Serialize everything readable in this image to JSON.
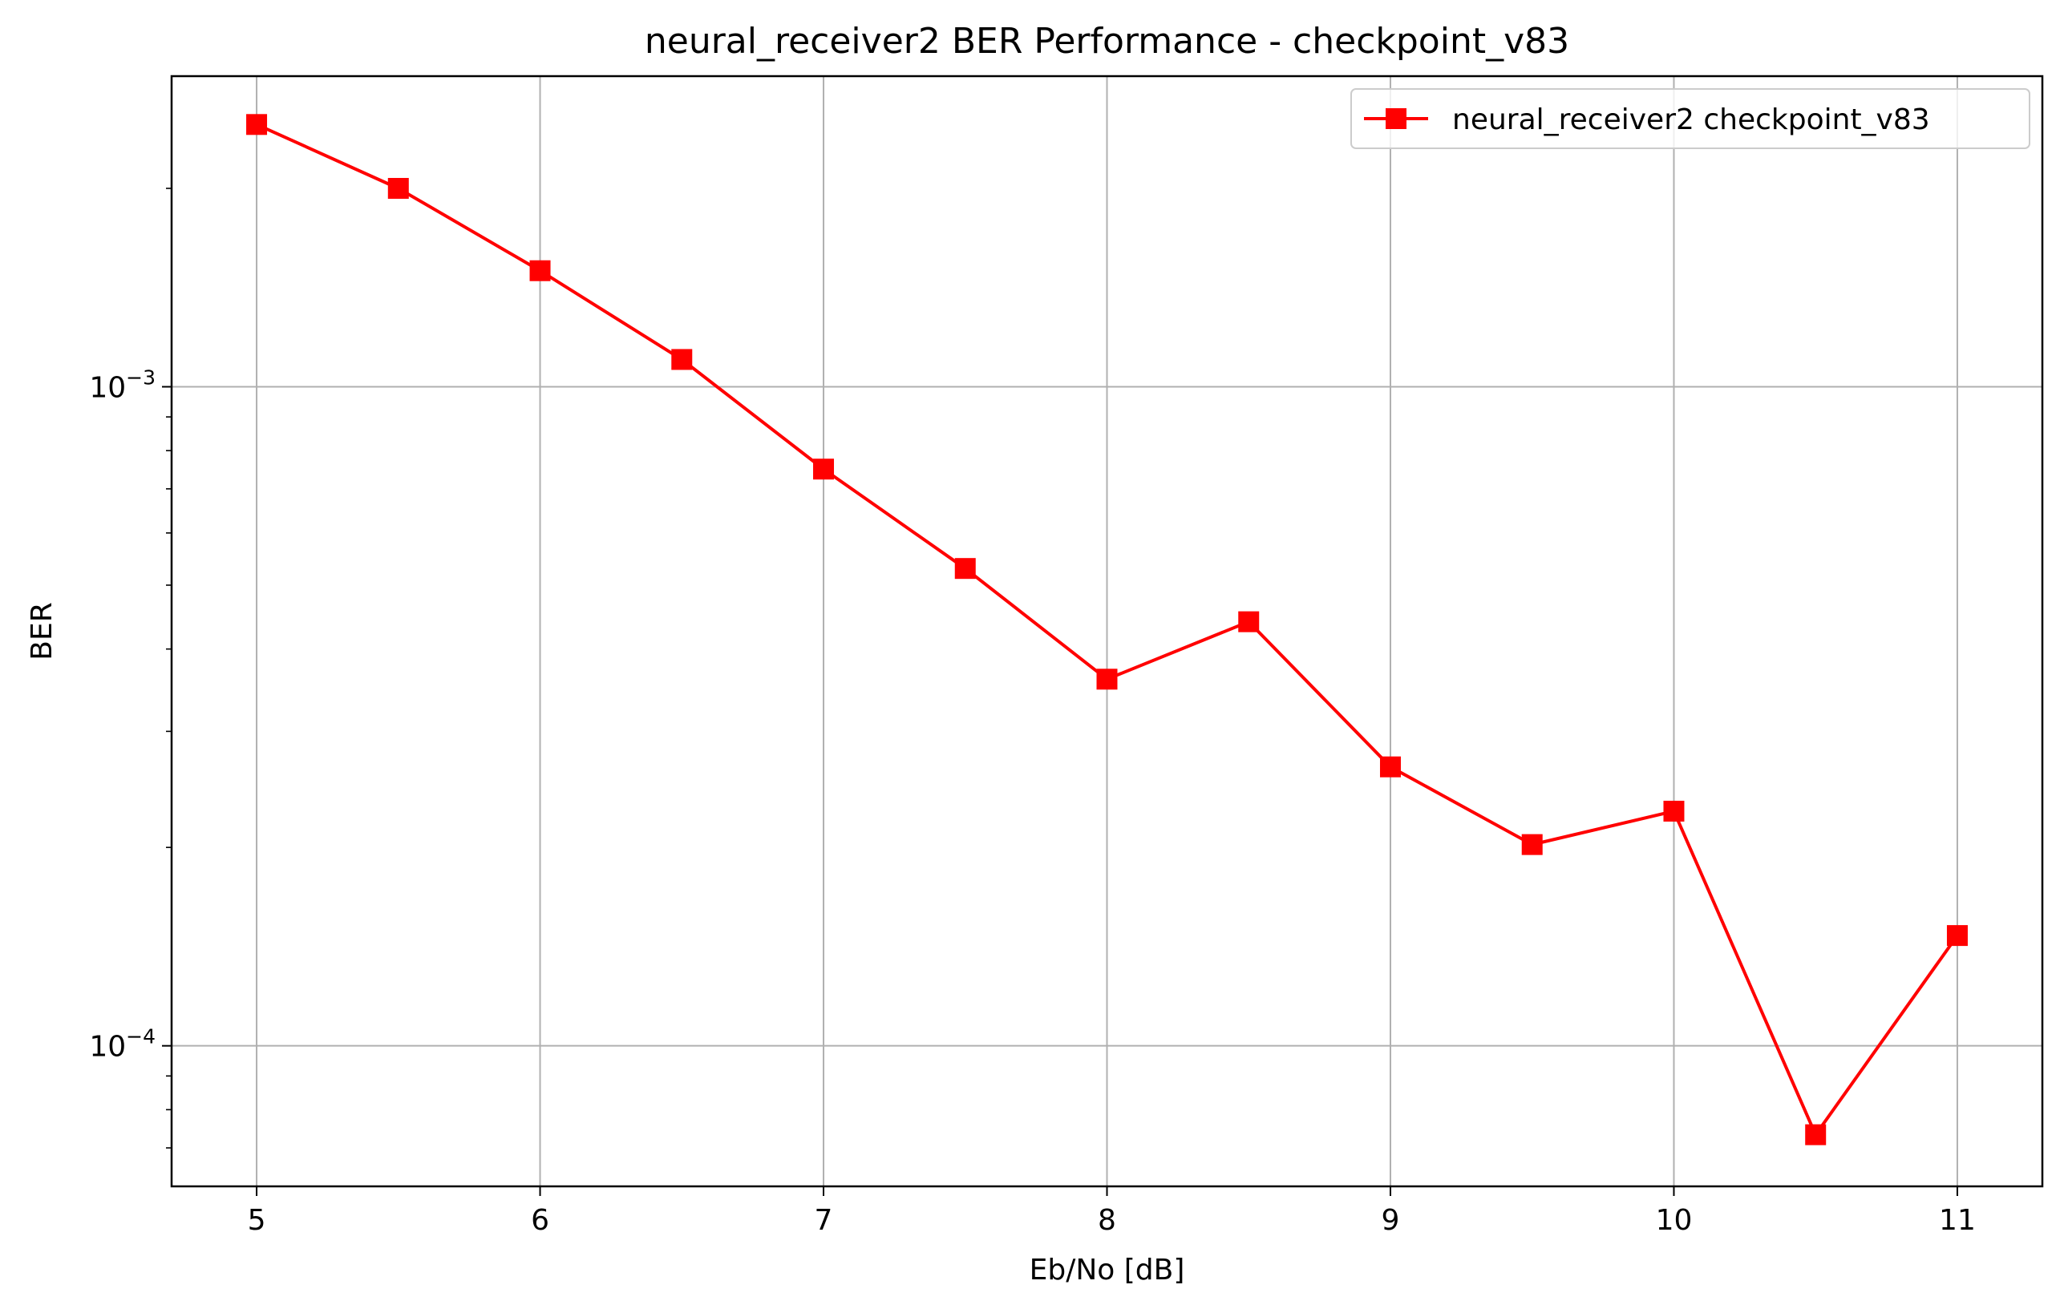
{
  "chart_data": {
    "type": "line",
    "title": "neural_receiver2 BER Performance - checkpoint_v83",
    "xlabel": "Eb/No [dB]",
    "ylabel": "BER",
    "x_scale": "linear",
    "y_scale": "log",
    "xlim": [
      4.7,
      11.3
    ],
    "ylim": [
      6.12e-05,
      0.00296
    ],
    "x_ticks": [
      5,
      6,
      7,
      8,
      9,
      10,
      11
    ],
    "x_tick_labels": [
      "5",
      "6",
      "7",
      "8",
      "9",
      "10",
      "11"
    ],
    "y_ticks": [
      0.0001,
      0.001
    ],
    "y_tick_labels": [
      {
        "base": "10",
        "exponent": "−4"
      },
      {
        "base": "10",
        "exponent": "−3"
      }
    ],
    "grid": true,
    "legend_position": "top-right",
    "series": [
      {
        "name": "neural_receiver2 checkpoint_v83",
        "color": "#ff0000",
        "marker": "square",
        "x": [
          5,
          5.5,
          6,
          6.5,
          7,
          7.5,
          8,
          8.5,
          9,
          9.5,
          10,
          10.5,
          11
        ],
        "y": [
          0.0025,
          0.002,
          0.0015,
          0.0011,
          0.00075,
          0.00053,
          0.00036,
          0.00044,
          0.000265,
          0.000202,
          0.000227,
          7.33e-05,
          0.000147
        ]
      }
    ]
  }
}
